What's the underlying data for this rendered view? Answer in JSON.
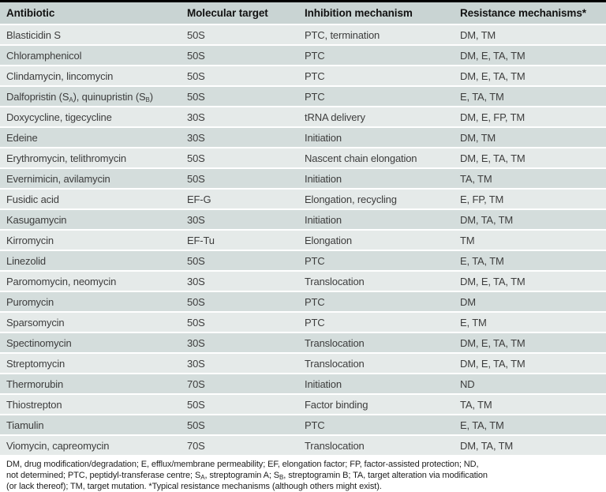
{
  "table": {
    "headers": [
      "Antibiotic",
      "Molecular target",
      "Inhibition mechanism",
      "Resistance mechanisms*"
    ],
    "rows": [
      {
        "antibiotic": "Blasticidin S",
        "target": "50S",
        "mechanism": "PTC, termination",
        "resistance": "DM, TM"
      },
      {
        "antibiotic": "Chloramphenicol",
        "target": "50S",
        "mechanism": "PTC",
        "resistance": "DM, E, TA, TM"
      },
      {
        "antibiotic": "Clindamycin, lincomycin",
        "target": "50S",
        "mechanism": "PTC",
        "resistance": "DM, E, TA, TM"
      },
      {
        "antibiotic": "Dalfopristin (S~A~), quinupristin (S~B~)",
        "target": "50S",
        "mechanism": "PTC",
        "resistance": "E, TA, TM"
      },
      {
        "antibiotic": "Doxycycline, tigecycline",
        "target": "30S",
        "mechanism": "tRNA delivery",
        "resistance": "DM, E, FP, TM"
      },
      {
        "antibiotic": "Edeine",
        "target": "30S",
        "mechanism": "Initiation",
        "resistance": "DM, TM"
      },
      {
        "antibiotic": "Erythromycin, telithromycin",
        "target": "50S",
        "mechanism": "Nascent chain elongation",
        "resistance": "DM, E, TA, TM"
      },
      {
        "antibiotic": "Evernimicin, avilamycin",
        "target": "50S",
        "mechanism": "Initiation",
        "resistance": "TA, TM"
      },
      {
        "antibiotic": "Fusidic acid",
        "target": "EF-G",
        "mechanism": "Elongation, recycling",
        "resistance": "E, FP, TM"
      },
      {
        "antibiotic": "Kasugamycin",
        "target": "30S",
        "mechanism": "Initiation",
        "resistance": "DM, TA, TM"
      },
      {
        "antibiotic": "Kirromycin",
        "target": "EF-Tu",
        "mechanism": "Elongation",
        "resistance": "TM"
      },
      {
        "antibiotic": "Linezolid",
        "target": "50S",
        "mechanism": "PTC",
        "resistance": "E, TA, TM"
      },
      {
        "antibiotic": "Paromomycin, neomycin",
        "target": "30S",
        "mechanism": "Translocation",
        "resistance": "DM, E, TA, TM"
      },
      {
        "antibiotic": "Puromycin",
        "target": "50S",
        "mechanism": "PTC",
        "resistance": "DM"
      },
      {
        "antibiotic": "Sparsomycin",
        "target": "50S",
        "mechanism": "PTC",
        "resistance": "E, TM"
      },
      {
        "antibiotic": "Spectinomycin",
        "target": "30S",
        "mechanism": "Translocation",
        "resistance": "DM, E, TA, TM"
      },
      {
        "antibiotic": "Streptomycin",
        "target": "30S",
        "mechanism": "Translocation",
        "resistance": "DM, E, TA, TM"
      },
      {
        "antibiotic": "Thermorubin",
        "target": "70S",
        "mechanism": "Initiation",
        "resistance": "ND"
      },
      {
        "antibiotic": "Thiostrepton",
        "target": "50S",
        "mechanism": "Factor binding",
        "resistance": "TA, TM"
      },
      {
        "antibiotic": "Tiamulin",
        "target": "50S",
        "mechanism": "PTC",
        "resistance": "E, TA, TM"
      },
      {
        "antibiotic": "Viomycin, capreomycin",
        "target": "70S",
        "mechanism": "Translocation",
        "resistance": "DM, TA, TM"
      }
    ]
  },
  "footnote": {
    "lines": [
      "DM, drug modification/degradation; E, efflux/membrane permeability; EF, elongation factor; FP, factor-assisted protection; ND,",
      "not determined; PTC, peptidyl-transferase centre; S~A~, streptogramin A; S~B~, streptogramin B; TA, target alteration via modification",
      "(or lack thereof); TM, target mutation. *Typical resistance mechanisms (although others might exist)."
    ]
  },
  "colors": {
    "top_rule": "#000000",
    "header_bg": "#c9d4d3",
    "row_light": "#e5eae9",
    "row_dark": "#d4dddc"
  }
}
